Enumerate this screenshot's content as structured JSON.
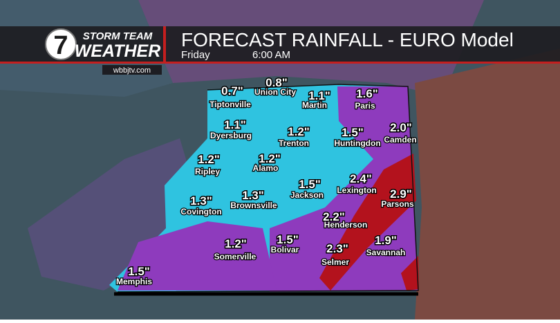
{
  "header": {
    "brand_top": "STORM TEAM",
    "brand_bottom": "WEATHER",
    "logo_number": "7",
    "title": "FORECAST RAINFALL - EURO Model",
    "day": "Friday",
    "time": "6:00 AM",
    "website": "wbbjtv.com"
  },
  "cities": [
    {
      "name": "Tiptonville",
      "amount": "0.7\""
    },
    {
      "name": "Union City",
      "amount": "0.8\""
    },
    {
      "name": "Martin",
      "amount": "1.1\""
    },
    {
      "name": "Paris",
      "amount": "1.6\""
    },
    {
      "name": "Dyersburg",
      "amount": "1.1\""
    },
    {
      "name": "Trenton",
      "amount": "1.2\""
    },
    {
      "name": "Huntingdon",
      "amount": "1.5\""
    },
    {
      "name": "Camden",
      "amount": "2.0\""
    },
    {
      "name": "Ripley",
      "amount": "1.2\""
    },
    {
      "name": "Alamo",
      "amount": "1.2\""
    },
    {
      "name": "Jackson",
      "amount": "1.5\""
    },
    {
      "name": "Lexington",
      "amount": "2.4\""
    },
    {
      "name": "Parsons",
      "amount": "2.9\""
    },
    {
      "name": "Covington",
      "amount": "1.3\""
    },
    {
      "name": "Brownsville",
      "amount": "1.3\""
    },
    {
      "name": "Henderson",
      "amount": "2.2\""
    },
    {
      "name": "Somerville",
      "amount": "1.2\""
    },
    {
      "name": "Bolivar",
      "amount": "1.5\""
    },
    {
      "name": "Selmer",
      "amount": "2.3\""
    },
    {
      "name": "Savannah",
      "amount": "1.9\""
    },
    {
      "name": "Memphis",
      "amount": "1.5\""
    }
  ]
}
